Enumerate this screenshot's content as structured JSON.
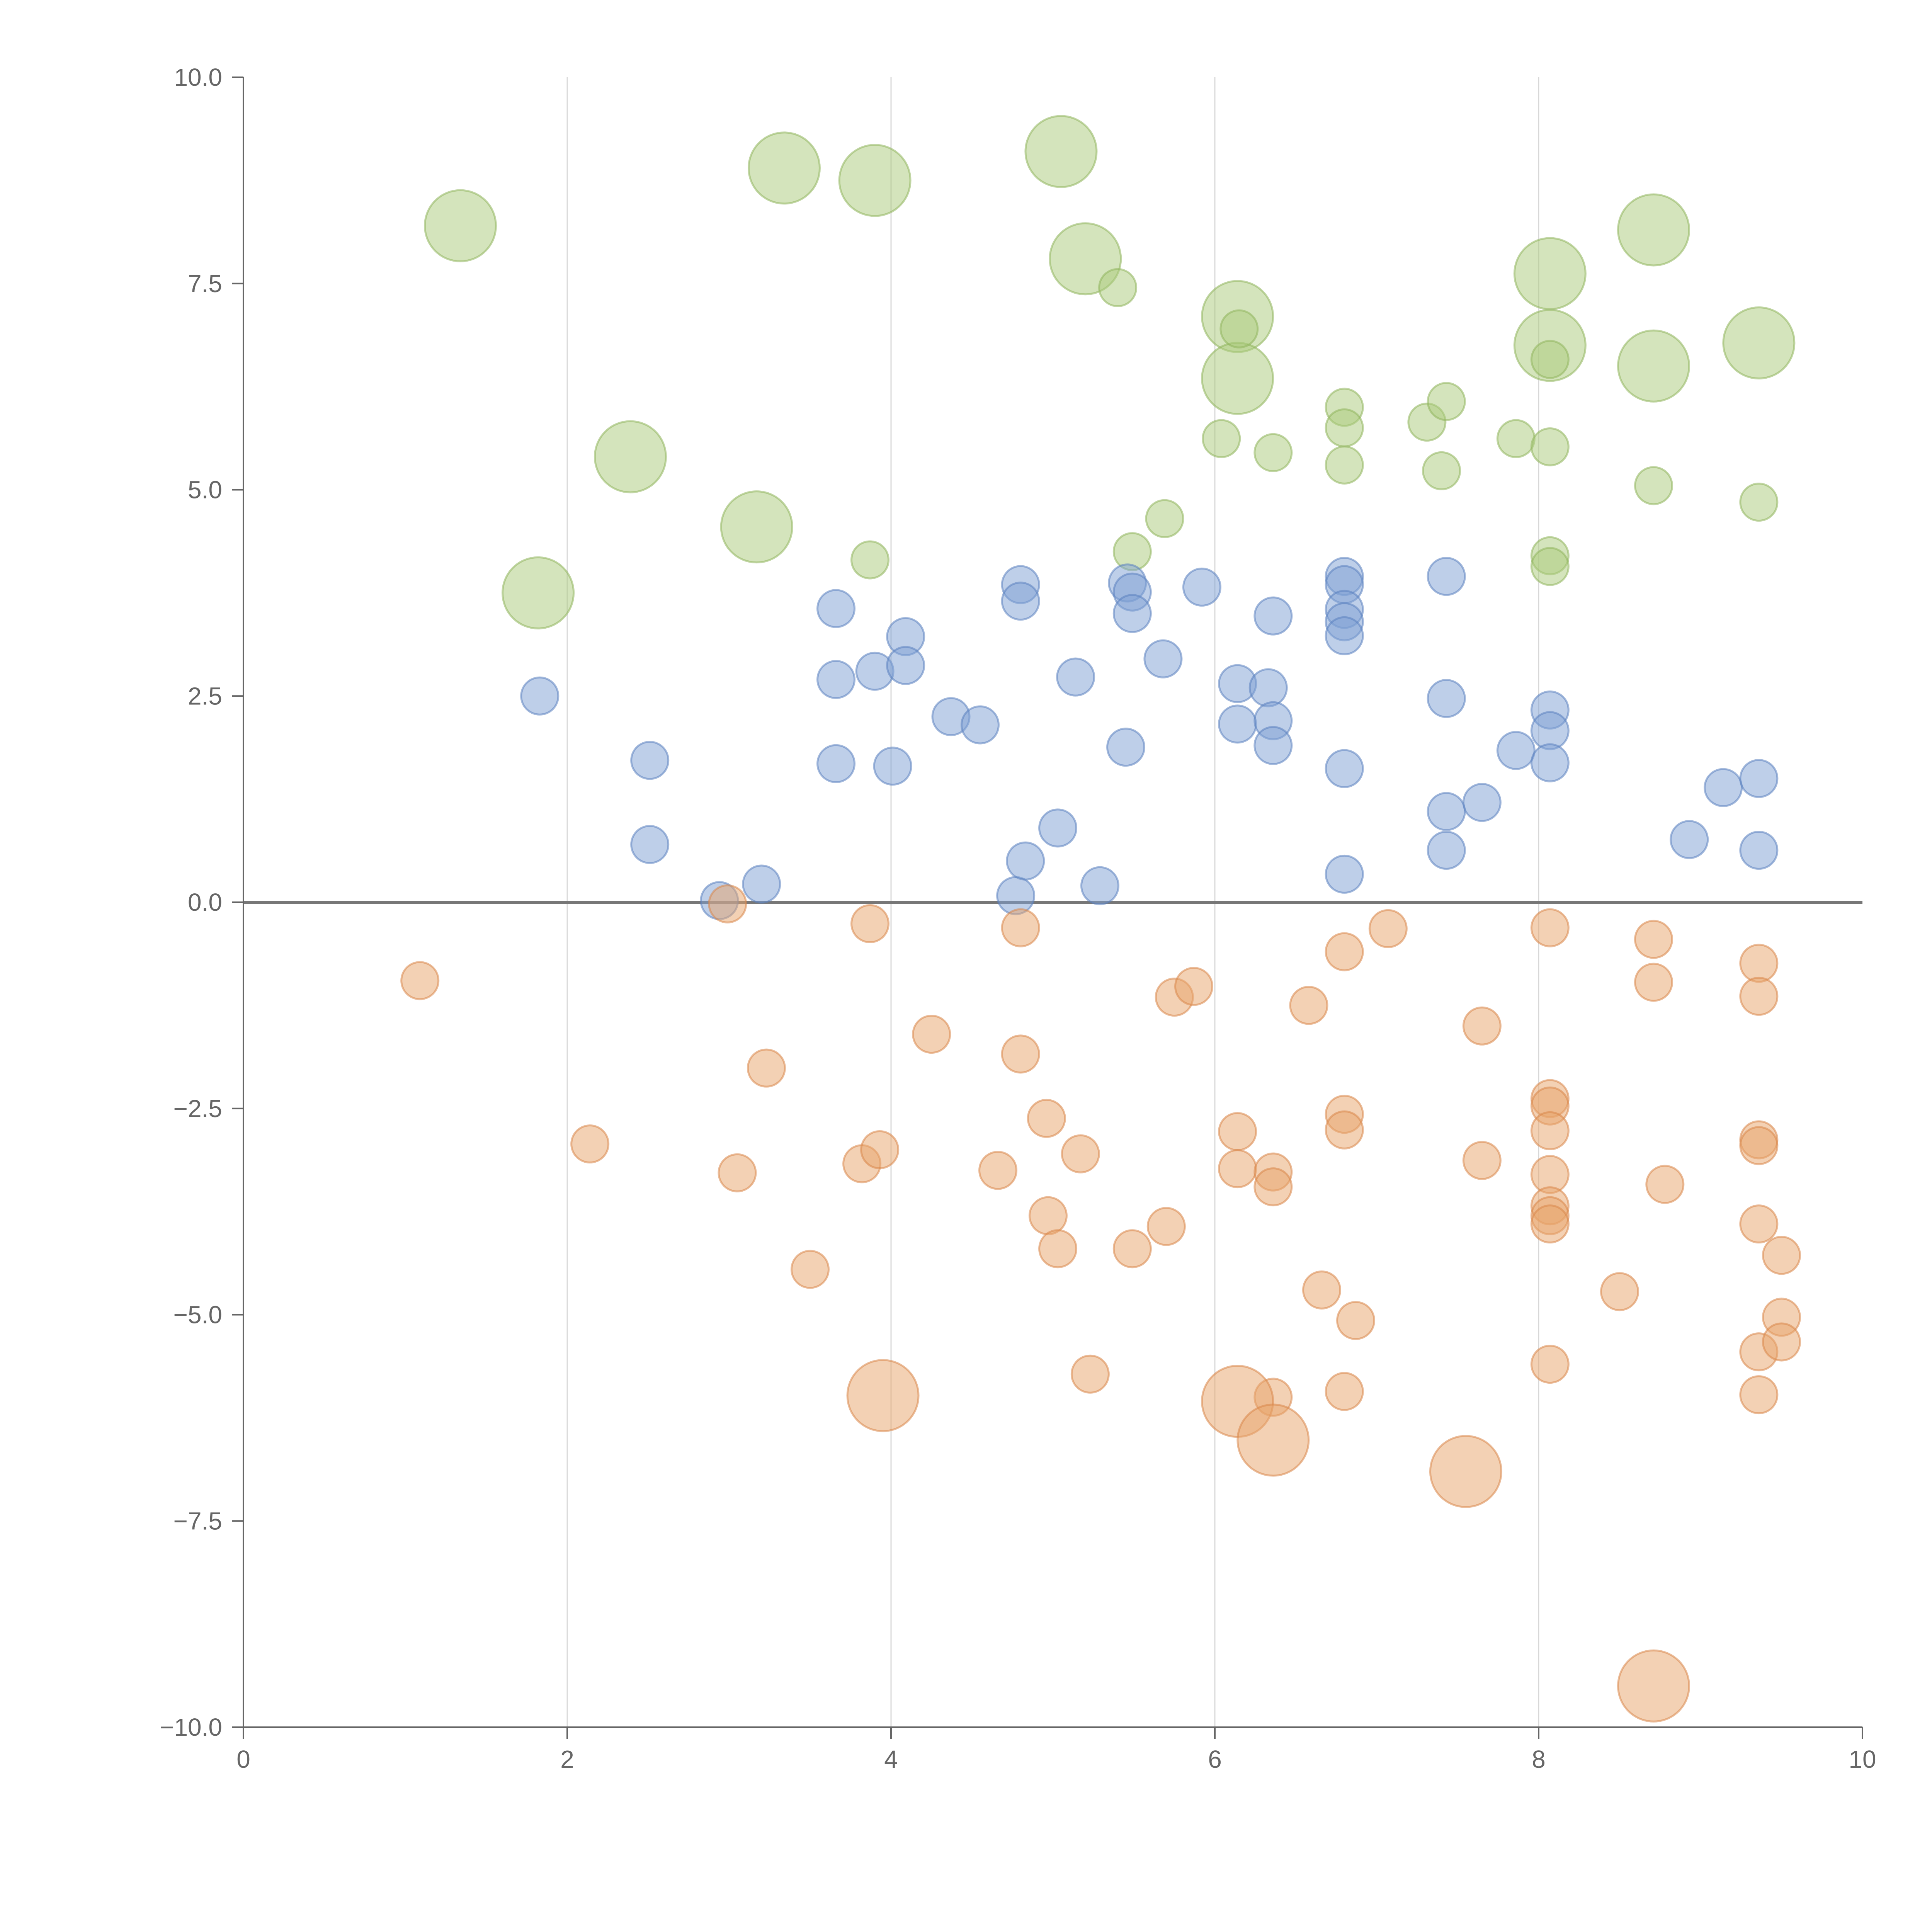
{
  "chart_data": {
    "type": "scatter",
    "title": "",
    "xlabel": "",
    "ylabel": "",
    "xlim": [
      0,
      10
    ],
    "ylim": [
      -10,
      10
    ],
    "x_ticks": [
      0,
      2,
      4,
      6,
      8,
      10
    ],
    "x_tick_labels": [
      "0",
      "2",
      "4",
      "6",
      "8",
      "10"
    ],
    "y_ticks": [
      10,
      7.5,
      5,
      2.5,
      0,
      -2.5,
      -5,
      -7.5,
      -10
    ],
    "y_tick_labels": [
      "10.0",
      "7.5",
      "5.0",
      "2.5",
      "0.0",
      "−2.5",
      "−5.0",
      "−7.5",
      "−10.0"
    ],
    "vertical_grid_at": [
      2,
      4,
      6,
      8
    ],
    "zero_line": 0,
    "legend": "none",
    "size_scale": "relative marker size (small / large)",
    "series": [
      {
        "name": "green",
        "color": "#a9c97a",
        "edge": "#8fb55c",
        "points": [
          [
            1.34,
            8.2,
            "L"
          ],
          [
            1.82,
            3.75,
            "L"
          ],
          [
            2.39,
            5.4,
            "L"
          ],
          [
            3.17,
            4.55,
            "L"
          ],
          [
            3.34,
            8.9,
            "L"
          ],
          [
            3.9,
            8.75,
            "L"
          ],
          [
            5.05,
            9.1,
            "L"
          ],
          [
            5.2,
            7.8,
            "L"
          ],
          [
            6.14,
            7.1,
            "L"
          ],
          [
            6.14,
            6.35,
            "L"
          ],
          [
            8.07,
            7.62,
            "L"
          ],
          [
            8.07,
            6.75,
            "L"
          ],
          [
            8.71,
            8.15,
            "L"
          ],
          [
            8.71,
            6.5,
            "L"
          ],
          [
            9.36,
            6.78,
            "L"
          ],
          [
            3.87,
            4.15,
            "S"
          ],
          [
            5.4,
            7.45,
            "S"
          ],
          [
            5.49,
            4.25,
            "S"
          ],
          [
            5.69,
            4.65,
            "S"
          ],
          [
            6.04,
            5.62,
            "S"
          ],
          [
            6.15,
            6.95,
            "S"
          ],
          [
            6.36,
            5.45,
            "S"
          ],
          [
            6.8,
            6.0,
            "S"
          ],
          [
            6.8,
            5.75,
            "S"
          ],
          [
            6.8,
            5.3,
            "S"
          ],
          [
            7.31,
            5.82,
            "S"
          ],
          [
            7.4,
            5.23,
            "S"
          ],
          [
            7.43,
            6.07,
            "S"
          ],
          [
            7.86,
            5.62,
            "S"
          ],
          [
            8.07,
            6.58,
            "S"
          ],
          [
            8.07,
            5.52,
            "S"
          ],
          [
            8.07,
            4.2,
            "S"
          ],
          [
            8.07,
            4.07,
            "S"
          ],
          [
            8.71,
            5.05,
            "S"
          ],
          [
            9.36,
            4.85,
            "S"
          ]
        ]
      },
      {
        "name": "blue",
        "color": "#7da0d4",
        "edge": "#5b82c0",
        "points": [
          [
            1.83,
            2.5,
            "S"
          ],
          [
            2.51,
            1.72,
            "S"
          ],
          [
            2.51,
            0.7,
            "S"
          ],
          [
            2.94,
            0.02,
            "S"
          ],
          [
            3.2,
            0.22,
            "S"
          ],
          [
            3.66,
            3.56,
            "S"
          ],
          [
            3.66,
            2.7,
            "S"
          ],
          [
            3.66,
            1.68,
            "S"
          ],
          [
            3.9,
            2.8,
            "S"
          ],
          [
            4.01,
            1.65,
            "S"
          ],
          [
            4.09,
            3.22,
            "S"
          ],
          [
            4.09,
            2.87,
            "S"
          ],
          [
            4.37,
            2.25,
            "S"
          ],
          [
            4.55,
            2.15,
            "S"
          ],
          [
            4.77,
            0.08,
            "S"
          ],
          [
            4.8,
            3.85,
            "S"
          ],
          [
            4.8,
            3.65,
            "S"
          ],
          [
            4.83,
            0.5,
            "S"
          ],
          [
            5.03,
            0.9,
            "S"
          ],
          [
            5.14,
            2.73,
            "S"
          ],
          [
            5.29,
            0.2,
            "S"
          ],
          [
            5.45,
            1.88,
            "S"
          ],
          [
            5.46,
            3.87,
            "S"
          ],
          [
            5.49,
            3.76,
            "S"
          ],
          [
            5.49,
            3.5,
            "S"
          ],
          [
            5.68,
            2.95,
            "S"
          ],
          [
            5.92,
            3.82,
            "S"
          ],
          [
            6.14,
            2.65,
            "S"
          ],
          [
            6.14,
            2.16,
            "S"
          ],
          [
            6.33,
            2.6,
            "S"
          ],
          [
            6.36,
            3.47,
            "S"
          ],
          [
            6.36,
            2.2,
            "S"
          ],
          [
            6.36,
            1.9,
            "S"
          ],
          [
            6.8,
            3.95,
            "S"
          ],
          [
            6.8,
            3.85,
            "S"
          ],
          [
            6.8,
            3.55,
            "S"
          ],
          [
            6.8,
            3.4,
            "S"
          ],
          [
            6.8,
            3.23,
            "S"
          ],
          [
            6.8,
            1.62,
            "S"
          ],
          [
            6.8,
            0.34,
            "S"
          ],
          [
            7.43,
            3.95,
            "S"
          ],
          [
            7.43,
            2.47,
            "S"
          ],
          [
            7.43,
            1.1,
            "S"
          ],
          [
            7.43,
            0.63,
            "S"
          ],
          [
            7.65,
            1.21,
            "S"
          ],
          [
            7.86,
            1.84,
            "S"
          ],
          [
            8.07,
            2.33,
            "S"
          ],
          [
            8.07,
            2.08,
            "S"
          ],
          [
            8.07,
            1.69,
            "S"
          ],
          [
            8.93,
            0.76,
            "S"
          ],
          [
            9.14,
            1.39,
            "S"
          ],
          [
            9.36,
            1.5,
            "S"
          ],
          [
            9.36,
            0.63,
            "S"
          ]
        ]
      },
      {
        "name": "orange",
        "color": "#e8a46a",
        "edge": "#d8874a",
        "points": [
          [
            1.09,
            -0.95,
            "S"
          ],
          [
            2.14,
            -2.93,
            "S"
          ],
          [
            2.99,
            -0.02,
            "S"
          ],
          [
            3.05,
            -3.28,
            "S"
          ],
          [
            3.23,
            -2.01,
            "S"
          ],
          [
            3.5,
            -4.45,
            "S"
          ],
          [
            3.82,
            -3.17,
            "S"
          ],
          [
            3.87,
            -0.26,
            "S"
          ],
          [
            3.93,
            -3.0,
            "S"
          ],
          [
            4.25,
            -1.6,
            "S"
          ],
          [
            4.66,
            -3.25,
            "S"
          ],
          [
            4.8,
            -0.31,
            "S"
          ],
          [
            4.8,
            -1.84,
            "S"
          ],
          [
            4.96,
            -2.62,
            "S"
          ],
          [
            4.97,
            -3.8,
            "S"
          ],
          [
            5.03,
            -4.2,
            "S"
          ],
          [
            5.17,
            -3.05,
            "S"
          ],
          [
            5.23,
            -5.72,
            "S"
          ],
          [
            5.49,
            -4.2,
            "S"
          ],
          [
            5.7,
            -3.93,
            "S"
          ],
          [
            5.75,
            -1.15,
            "S"
          ],
          [
            5.87,
            -1.02,
            "S"
          ],
          [
            6.14,
            -2.78,
            "S"
          ],
          [
            6.14,
            -3.23,
            "S"
          ],
          [
            6.36,
            -3.27,
            "S"
          ],
          [
            6.36,
            -3.45,
            "S"
          ],
          [
            6.36,
            -6.0,
            "S"
          ],
          [
            6.58,
            -1.25,
            "S"
          ],
          [
            6.66,
            -4.7,
            "S"
          ],
          [
            6.8,
            -0.6,
            "S"
          ],
          [
            6.8,
            -2.57,
            "S"
          ],
          [
            6.8,
            -2.76,
            "S"
          ],
          [
            6.8,
            -5.93,
            "S"
          ],
          [
            6.87,
            -5.07,
            "S"
          ],
          [
            7.07,
            -0.32,
            "S"
          ],
          [
            7.65,
            -1.5,
            "S"
          ],
          [
            7.65,
            -3.13,
            "S"
          ],
          [
            8.07,
            -0.31,
            "S"
          ],
          [
            8.07,
            -2.38,
            "S"
          ],
          [
            8.07,
            -2.47,
            "S"
          ],
          [
            8.07,
            -2.77,
            "S"
          ],
          [
            8.07,
            -3.3,
            "S"
          ],
          [
            8.07,
            -3.68,
            "S"
          ],
          [
            8.07,
            -3.8,
            "S"
          ],
          [
            8.07,
            -3.9,
            "S"
          ],
          [
            8.07,
            -5.6,
            "S"
          ],
          [
            8.5,
            -4.72,
            "S"
          ],
          [
            8.71,
            -0.45,
            "S"
          ],
          [
            8.71,
            -0.97,
            "S"
          ],
          [
            8.78,
            -3.42,
            "S"
          ],
          [
            9.36,
            -0.74,
            "S"
          ],
          [
            9.36,
            -1.14,
            "S"
          ],
          [
            9.36,
            -2.88,
            "S"
          ],
          [
            9.36,
            -2.95,
            "S"
          ],
          [
            9.36,
            -3.9,
            "S"
          ],
          [
            9.36,
            -5.45,
            "S"
          ],
          [
            9.36,
            -5.97,
            "S"
          ],
          [
            9.5,
            -4.28,
            "S"
          ],
          [
            9.5,
            -5.03,
            "S"
          ],
          [
            9.5,
            -5.33,
            "S"
          ],
          [
            3.95,
            -5.98,
            "L"
          ],
          [
            6.14,
            -6.05,
            "L"
          ],
          [
            6.36,
            -6.52,
            "L"
          ],
          [
            7.55,
            -6.9,
            "L"
          ],
          [
            8.71,
            -9.5,
            "L"
          ]
        ]
      }
    ]
  }
}
